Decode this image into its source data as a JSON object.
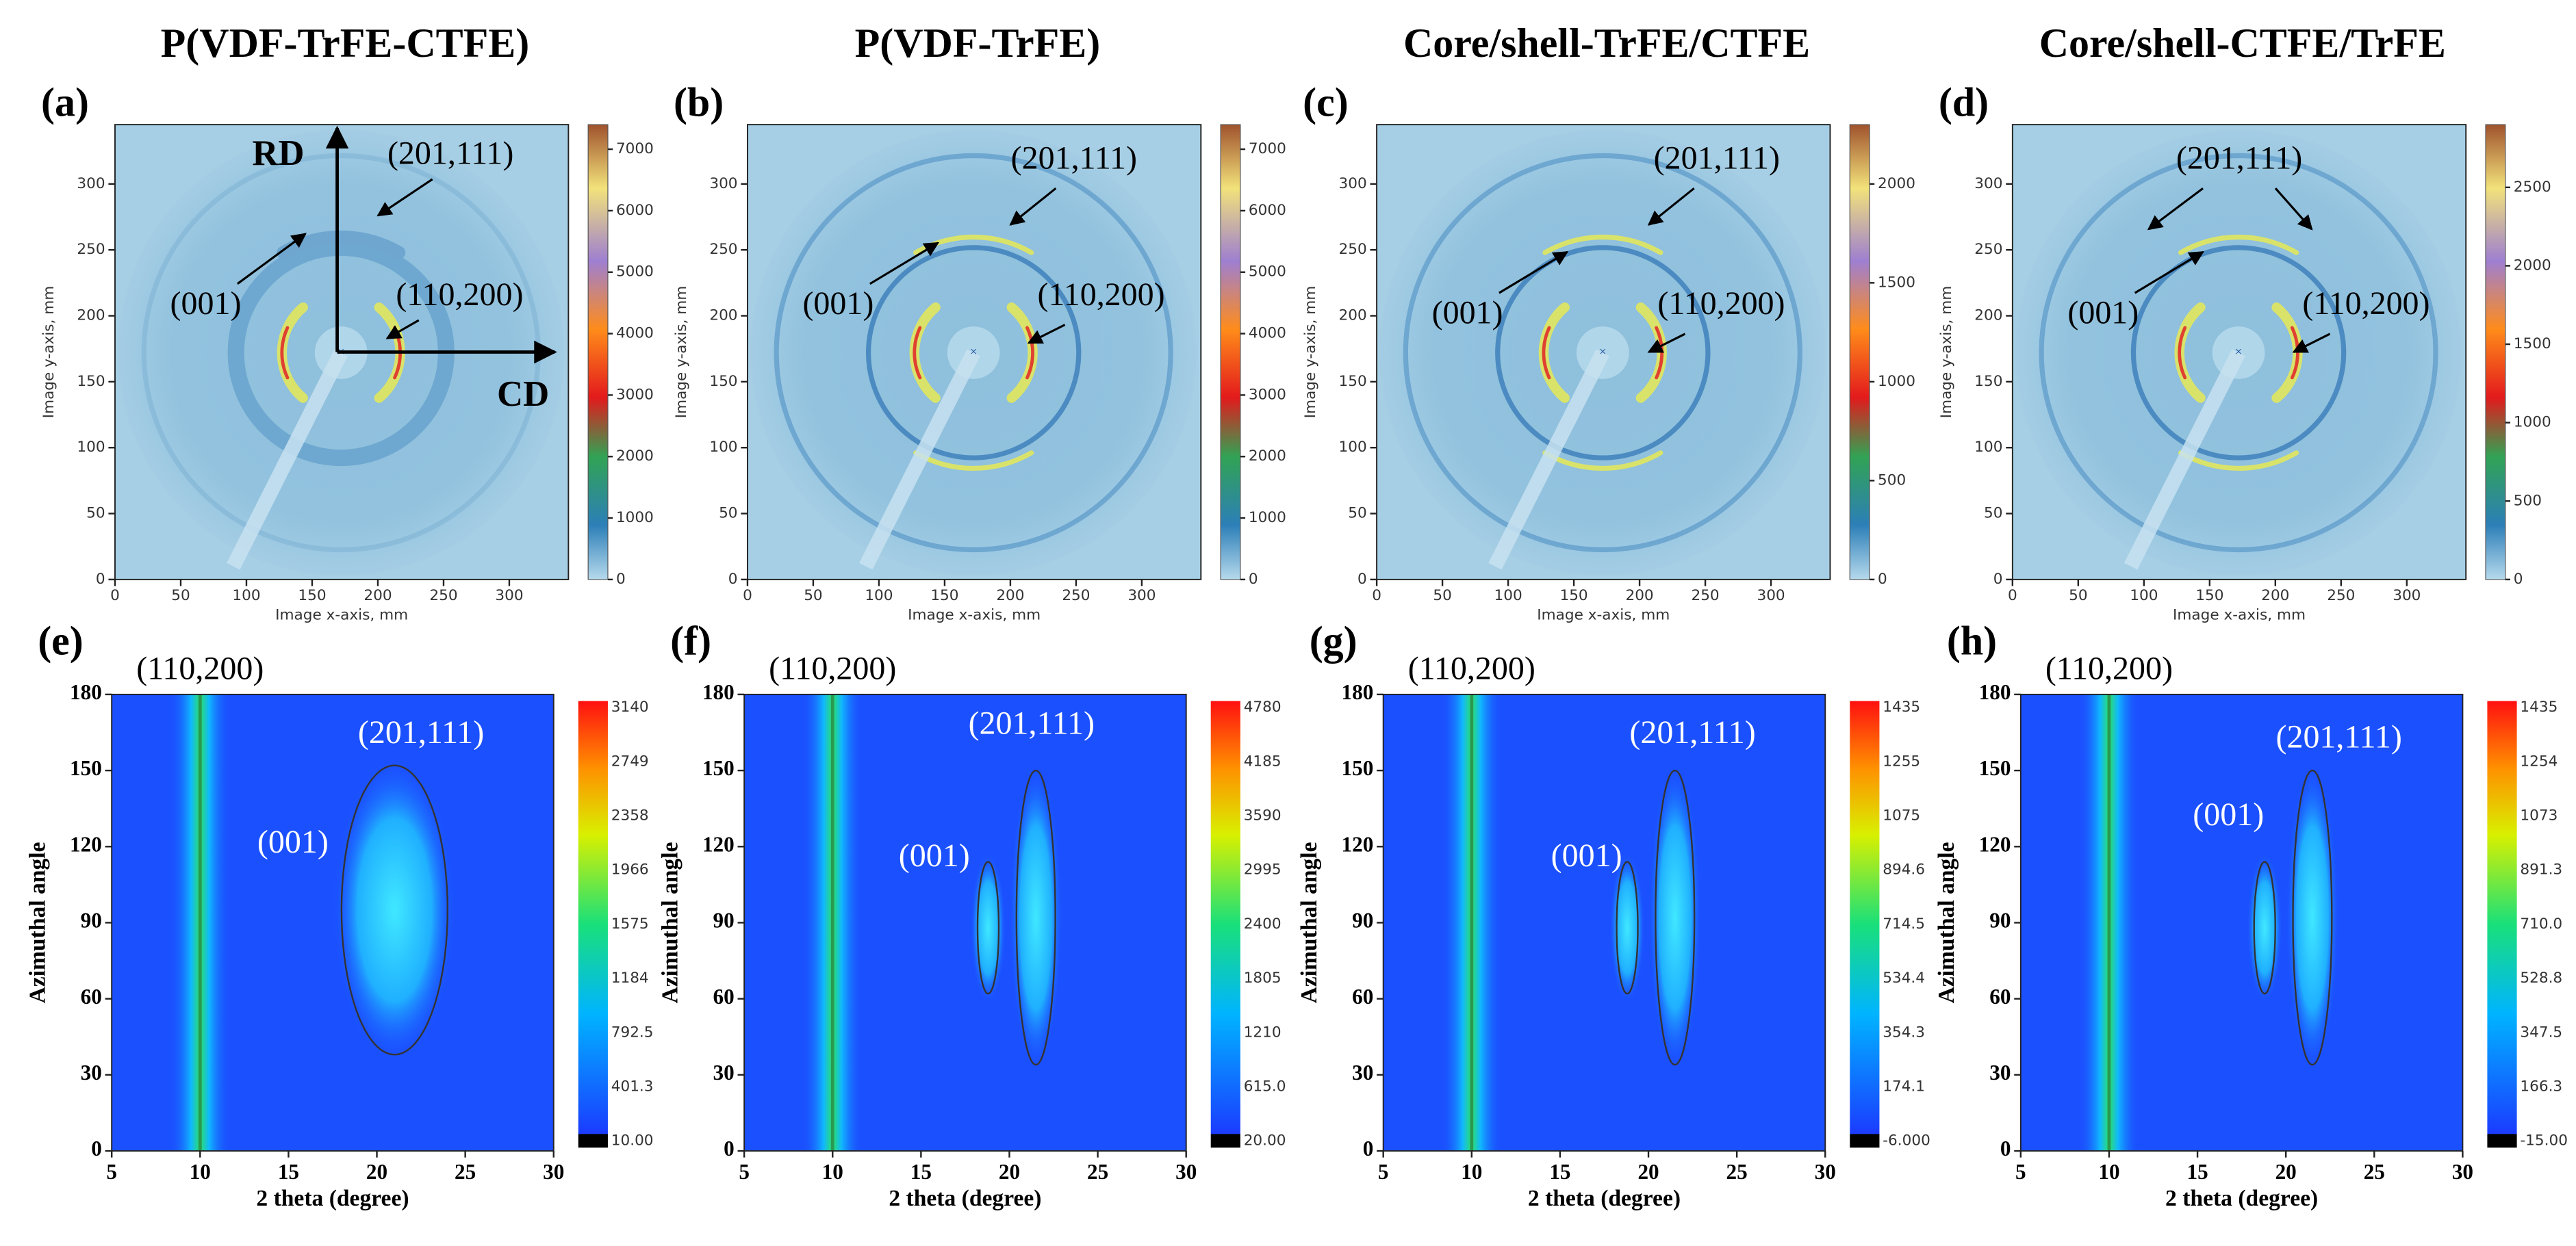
{
  "chart_data": [
    {
      "type": "diffraction",
      "title": "P(VDF-TrFE-CTFE)",
      "label": "(a)",
      "xlabel": "Image x-axis, mm",
      "ylabel": "Image y-axis, mm",
      "xlim": [
        0,
        345
      ],
      "ylim": [
        0,
        345
      ],
      "xticks": [
        0,
        50,
        100,
        150,
        200,
        250,
        300
      ],
      "yticks": [
        0,
        50,
        100,
        150,
        200,
        250,
        300
      ],
      "clim": [
        0,
        7400
      ],
      "cticks": [
        0,
        1000,
        2000,
        3000,
        4000,
        5000,
        6000,
        7000
      ],
      "annotations": [
        "RD",
        "CD",
        "(201,111)",
        "(001)",
        "(110,200)"
      ]
    },
    {
      "type": "diffraction",
      "title": "P(VDF-TrFE)",
      "label": "(b)",
      "xlabel": "Image x-axis, mm",
      "ylabel": "Image y-axis, mm",
      "xlim": [
        0,
        345
      ],
      "ylim": [
        0,
        345
      ],
      "xticks": [
        0,
        50,
        100,
        150,
        200,
        250,
        300
      ],
      "yticks": [
        0,
        50,
        100,
        150,
        200,
        250,
        300
      ],
      "clim": [
        0,
        7400
      ],
      "cticks": [
        0,
        1000,
        2000,
        3000,
        4000,
        5000,
        6000,
        7000
      ],
      "annotations": [
        "(201,111)",
        "(001)",
        "(110,200)"
      ]
    },
    {
      "type": "diffraction",
      "title": "Core/shell-TrFE/CTFE",
      "label": "(c)",
      "xlabel": "Image x-axis, mm",
      "ylabel": "Image y-axis, mm",
      "xlim": [
        0,
        345
      ],
      "ylim": [
        0,
        345
      ],
      "xticks": [
        0,
        50,
        100,
        150,
        200,
        250,
        300
      ],
      "yticks": [
        0,
        50,
        100,
        150,
        200,
        250,
        300
      ],
      "clim": [
        0,
        2300
      ],
      "cticks": [
        0,
        500,
        1000,
        1500,
        2000
      ],
      "annotations": [
        "(201,111)",
        "(001)",
        "(110,200)"
      ]
    },
    {
      "type": "diffraction",
      "title": "Core/shell-CTFE/TrFE",
      "label": "(d)",
      "xlabel": "Image x-axis, mm",
      "ylabel": "Image y-axis, mm",
      "xlim": [
        0,
        345
      ],
      "ylim": [
        0,
        345
      ],
      "xticks": [
        0,
        50,
        100,
        150,
        200,
        250,
        300
      ],
      "yticks": [
        0,
        50,
        100,
        150,
        200,
        250,
        300
      ],
      "clim": [
        0,
        2900
      ],
      "cticks": [
        0,
        500,
        1000,
        1500,
        2000,
        2500
      ],
      "annotations": [
        "(201,111)",
        "(001)",
        "(110,200)"
      ]
    },
    {
      "type": "contour",
      "label": "(e)",
      "xlabel": "2 theta (degree)",
      "ylabel": "Azimuthal angle",
      "xlim": [
        5,
        30
      ],
      "ylim": [
        0,
        180
      ],
      "xticks": [
        5,
        10,
        15,
        20,
        25,
        30
      ],
      "yticks": [
        0,
        30,
        60,
        90,
        120,
        150,
        180
      ],
      "levels": [
        "3140",
        "2749",
        "2358",
        "1966",
        "1575",
        "1184",
        "792.5",
        "401.3",
        "10.00"
      ],
      "annotations": [
        "(110,200)",
        "(201,111)",
        "(001)"
      ]
    },
    {
      "type": "contour",
      "label": "(f)",
      "xlabel": "2 theta (degree)",
      "ylabel": "Azimuthal angle",
      "xlim": [
        5,
        30
      ],
      "ylim": [
        0,
        180
      ],
      "xticks": [
        5,
        10,
        15,
        20,
        25,
        30
      ],
      "yticks": [
        0,
        30,
        60,
        90,
        120,
        150,
        180
      ],
      "levels": [
        "4780",
        "4185",
        "3590",
        "2995",
        "2400",
        "1805",
        "1210",
        "615.0",
        "20.00"
      ],
      "annotations": [
        "(110,200)",
        "(201,111)",
        "(001)"
      ]
    },
    {
      "type": "contour",
      "label": "(g)",
      "xlabel": "2 theta (degree)",
      "ylabel": "Azimuthal angle",
      "xlim": [
        5,
        30
      ],
      "ylim": [
        0,
        180
      ],
      "xticks": [
        5,
        10,
        15,
        20,
        25,
        30
      ],
      "yticks": [
        0,
        30,
        60,
        90,
        120,
        150,
        180
      ],
      "levels": [
        "1435",
        "1255",
        "1075",
        "894.6",
        "714.5",
        "534.4",
        "354.3",
        "174.1",
        "-6.000"
      ],
      "annotations": [
        "(110,200)",
        "(201,111)",
        "(001)"
      ]
    },
    {
      "type": "contour",
      "label": "(h)",
      "xlabel": "2 theta (degree)",
      "ylabel": "Azimuthal angle",
      "xlim": [
        5,
        30
      ],
      "ylim": [
        0,
        180
      ],
      "xticks": [
        5,
        10,
        15,
        20,
        25,
        30
      ],
      "yticks": [
        0,
        30,
        60,
        90,
        120,
        150,
        180
      ],
      "levels": [
        "1435",
        "1254",
        "1073",
        "891.3",
        "710.0",
        "528.8",
        "347.5",
        "166.3",
        "-15.00"
      ],
      "annotations": [
        "(110,200)",
        "(201,111)",
        "(001)"
      ]
    }
  ]
}
